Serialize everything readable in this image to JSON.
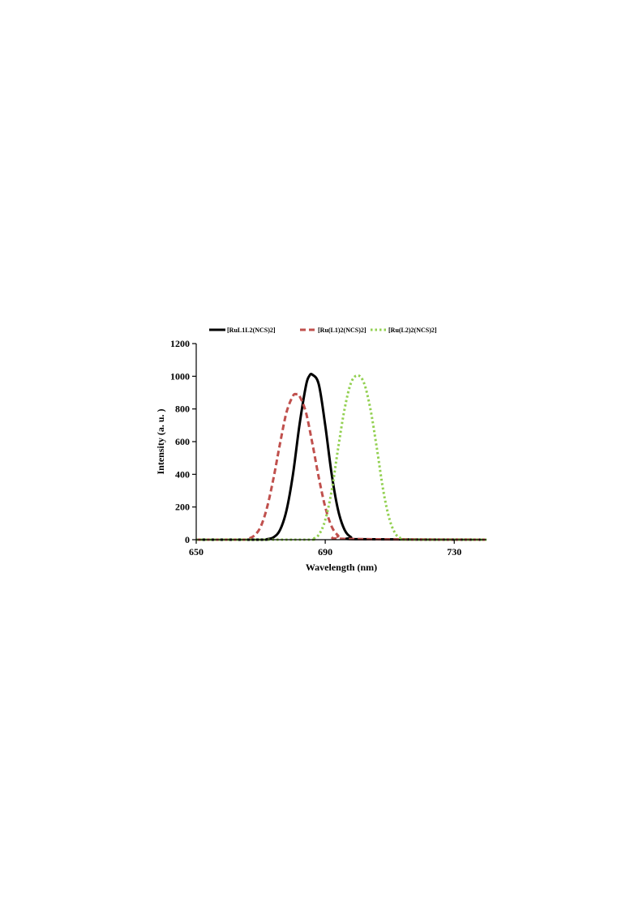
{
  "chart_data": {
    "type": "line",
    "title": "",
    "xlabel": "Wavelength (nm)",
    "ylabel": "Intensity (a. u. )",
    "xlim": [
      650,
      740
    ],
    "ylim": [
      0,
      1200
    ],
    "xticks": [
      650,
      690,
      730
    ],
    "yticks": [
      0,
      200,
      400,
      600,
      800,
      1000,
      1200
    ],
    "grid": false,
    "legend_position": "top",
    "series": [
      {
        "name": "[RuL1L2(NCS)2]",
        "color": "#000000",
        "style": "solid",
        "x": [
          650,
          670,
          672,
          674,
          676,
          678,
          680,
          682,
          684,
          685,
          686,
          688,
          690,
          692,
          694,
          696,
          698,
          700,
          740
        ],
        "y": [
          0,
          0,
          3,
          15,
          60,
          180,
          400,
          700,
          940,
          1000,
          1010,
          950,
          700,
          400,
          180,
          60,
          15,
          3,
          0
        ]
      },
      {
        "name": "[Ru(L1)2(NCS)2]",
        "color": "#c0504d",
        "style": "dashed",
        "x": [
          650,
          664,
          666,
          668,
          670,
          672,
          674,
          676,
          678,
          680,
          681,
          682,
          684,
          686,
          688,
          690,
          692,
          694,
          696,
          740
        ],
        "y": [
          0,
          0,
          5,
          25,
          80,
          200,
          380,
          590,
          780,
          880,
          890,
          880,
          780,
          590,
          380,
          200,
          80,
          25,
          5,
          0
        ]
      },
      {
        "name": "[Ru(L2)2(NCS)2]",
        "color": "#92d050",
        "style": "dotted",
        "x": [
          650,
          684,
          686,
          688,
          690,
          692,
          694,
          696,
          698,
          700,
          702,
          704,
          706,
          708,
          710,
          712,
          714,
          716,
          740
        ],
        "y": [
          0,
          0,
          5,
          30,
          120,
          300,
          560,
          800,
          960,
          1005,
          960,
          800,
          560,
          300,
          120,
          30,
          5,
          0,
          0
        ]
      }
    ]
  }
}
